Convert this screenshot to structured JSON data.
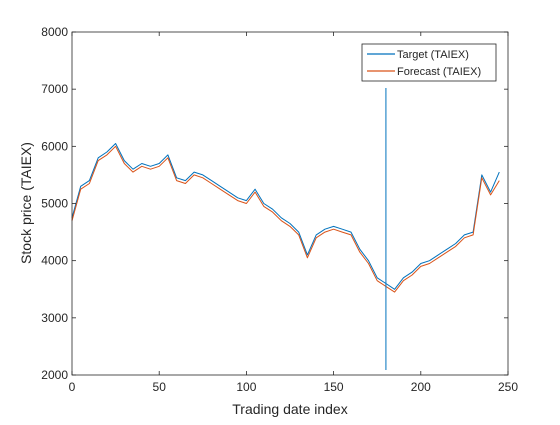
{
  "chart_data": {
    "type": "line",
    "title": "",
    "xlabel": "Trading date index",
    "ylabel": "Stock price (TAIEX)",
    "xlim": [
      0,
      250
    ],
    "ylim": [
      2000,
      8000
    ],
    "xticks": [
      0,
      50,
      100,
      150,
      200,
      250
    ],
    "yticks": [
      2000,
      3000,
      4000,
      5000,
      6000,
      7000,
      8000
    ],
    "grid": false,
    "legend_position": "top-right",
    "vertical_marker_x": 180,
    "x": [
      0,
      5,
      10,
      15,
      20,
      25,
      30,
      35,
      40,
      45,
      50,
      55,
      60,
      65,
      70,
      75,
      80,
      85,
      90,
      95,
      100,
      105,
      110,
      115,
      120,
      125,
      130,
      135,
      140,
      145,
      150,
      155,
      160,
      165,
      170,
      175,
      180,
      185,
      190,
      195,
      200,
      205,
      210,
      215,
      220,
      225,
      230,
      235,
      240,
      245
    ],
    "series": [
      {
        "name": "Target (TAIEX)",
        "color": "#0072BD",
        "values": [
          4750,
          5300,
          5400,
          5800,
          5900,
          6050,
          5750,
          5600,
          5700,
          5650,
          5700,
          5850,
          5450,
          5400,
          5550,
          5500,
          5400,
          5300,
          5200,
          5100,
          5050,
          5250,
          5000,
          4900,
          4750,
          4650,
          4500,
          4100,
          4450,
          4550,
          4600,
          4550,
          4500,
          4200,
          4000,
          3700,
          3600,
          3500,
          3700,
          3800,
          3950,
          4000,
          4100,
          4200,
          4300,
          4450,
          4500,
          5500,
          5200,
          5550
        ]
      },
      {
        "name": "Forecast (TAIEX)",
        "color": "#D95319",
        "values": [
          4700,
          5250,
          5350,
          5750,
          5850,
          6000,
          5700,
          5550,
          5650,
          5600,
          5650,
          5800,
          5400,
          5350,
          5500,
          5450,
          5350,
          5250,
          5150,
          5050,
          5000,
          5200,
          4950,
          4850,
          4700,
          4600,
          4450,
          4050,
          4400,
          4500,
          4550,
          4500,
          4450,
          4150,
          3950,
          3650,
          3550,
          3450,
          3650,
          3750,
          3900,
          3950,
          4050,
          4150,
          4250,
          4400,
          4450,
          5450,
          5150,
          5400
        ]
      }
    ]
  }
}
